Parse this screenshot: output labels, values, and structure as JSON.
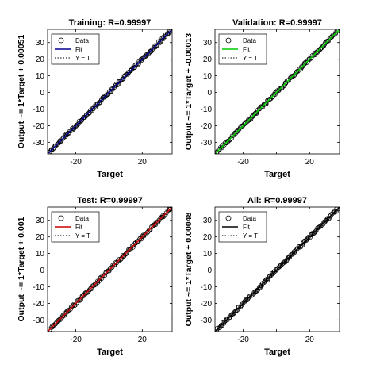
{
  "figure": {
    "background": "#ffffff",
    "axes_color": "#000000"
  },
  "chart_data": [
    {
      "type": "scatter",
      "title": "Training: R=0.99997",
      "xlabel": "Target",
      "ylabel": "Output ~= 1*Target + 0.00051",
      "xlim": [
        -37,
        38
      ],
      "ylim": [
        -37,
        38
      ],
      "x_ticks": [
        -20,
        0,
        20
      ],
      "y_ticks": [
        -30,
        -20,
        -10,
        0,
        10,
        20,
        30
      ],
      "x_tick_labels": [
        "-20",
        "",
        "20"
      ],
      "y_tick_labels": [
        "-30",
        "-20",
        "-10",
        "0",
        "10",
        "20",
        "30"
      ],
      "grid": false,
      "legend": {
        "placement": "top-left",
        "entries": [
          "Data",
          "Fit",
          "Y = T"
        ]
      },
      "fit": {
        "slope": 1,
        "intercept": 0.00051,
        "color": "#00008b"
      },
      "series": [
        {
          "name": "Data",
          "marker": "circle",
          "x_range": [
            -36,
            37
          ],
          "relation": "y ≈ x"
        },
        {
          "name": "Fit",
          "line": "solid",
          "color": "#00008b"
        },
        {
          "name": "Y = T",
          "line": "dotted",
          "color": "#000000"
        }
      ]
    },
    {
      "type": "scatter",
      "title": "Validation: R=0.99997",
      "xlabel": "Target",
      "ylabel": "Output ~= 1*Target + -0.00013",
      "xlim": [
        -37,
        38
      ],
      "ylim": [
        -37,
        38
      ],
      "x_ticks": [
        -20,
        0,
        20
      ],
      "y_ticks": [
        -30,
        -20,
        -10,
        0,
        10,
        20,
        30
      ],
      "x_tick_labels": [
        "-20",
        "",
        "20"
      ],
      "y_tick_labels": [
        "-30",
        "-20",
        "-10",
        "0",
        "10",
        "20",
        "30"
      ],
      "grid": false,
      "legend": {
        "placement": "top-left",
        "entries": [
          "Data",
          "Fit",
          "Y = T"
        ]
      },
      "fit": {
        "slope": 1,
        "intercept": -0.00013,
        "color": "#00cc00"
      },
      "series": [
        {
          "name": "Data",
          "marker": "circle",
          "x_range": [
            -36,
            37
          ],
          "relation": "y ≈ x"
        },
        {
          "name": "Fit",
          "line": "solid",
          "color": "#00cc00"
        },
        {
          "name": "Y = T",
          "line": "dotted",
          "color": "#000000"
        }
      ]
    },
    {
      "type": "scatter",
      "title": "Test: R=0.99997",
      "xlabel": "Target",
      "ylabel": "Output ~= 1*Target + 0.001",
      "xlim": [
        -37,
        38
      ],
      "ylim": [
        -37,
        38
      ],
      "x_ticks": [
        -20,
        0,
        20
      ],
      "y_ticks": [
        -30,
        -20,
        -10,
        0,
        10,
        20,
        30
      ],
      "x_tick_labels": [
        "-20",
        "",
        "20"
      ],
      "y_tick_labels": [
        "-30",
        "-20",
        "-10",
        "0",
        "10",
        "20",
        "30"
      ],
      "grid": false,
      "legend": {
        "placement": "top-left",
        "entries": [
          "Data",
          "Fit",
          "Y = T"
        ]
      },
      "fit": {
        "slope": 1,
        "intercept": 0.001,
        "color": "#cc0000"
      },
      "series": [
        {
          "name": "Data",
          "marker": "circle",
          "x_range": [
            -36,
            37
          ],
          "relation": "y ≈ x"
        },
        {
          "name": "Fit",
          "line": "solid",
          "color": "#cc0000"
        },
        {
          "name": "Y = T",
          "line": "dotted",
          "color": "#000000"
        }
      ]
    },
    {
      "type": "scatter",
      "title": "All: R=0.99997",
      "xlabel": "Target",
      "ylabel": "Output ~= 1*Target + 0.00048",
      "xlim": [
        -37,
        38
      ],
      "ylim": [
        -37,
        38
      ],
      "x_ticks": [
        -20,
        0,
        20
      ],
      "y_ticks": [
        -30,
        -20,
        -10,
        0,
        10,
        20,
        30
      ],
      "x_tick_labels": [
        "-20",
        "",
        "20"
      ],
      "y_tick_labels": [
        "-30",
        "-20",
        "-10",
        "0",
        "10",
        "20",
        "30"
      ],
      "grid": false,
      "legend": {
        "placement": "top-left",
        "entries": [
          "Data",
          "Fit",
          "Y = T"
        ]
      },
      "fit": {
        "slope": 1,
        "intercept": 0.00048,
        "color": "#000000"
      },
      "series": [
        {
          "name": "Data",
          "marker": "circle",
          "x_range": [
            -36,
            37
          ],
          "relation": "y ≈ x"
        },
        {
          "name": "Fit",
          "line": "solid",
          "color": "#000000"
        },
        {
          "name": "Y = T",
          "line": "dotted",
          "color": "#000000"
        }
      ]
    }
  ]
}
